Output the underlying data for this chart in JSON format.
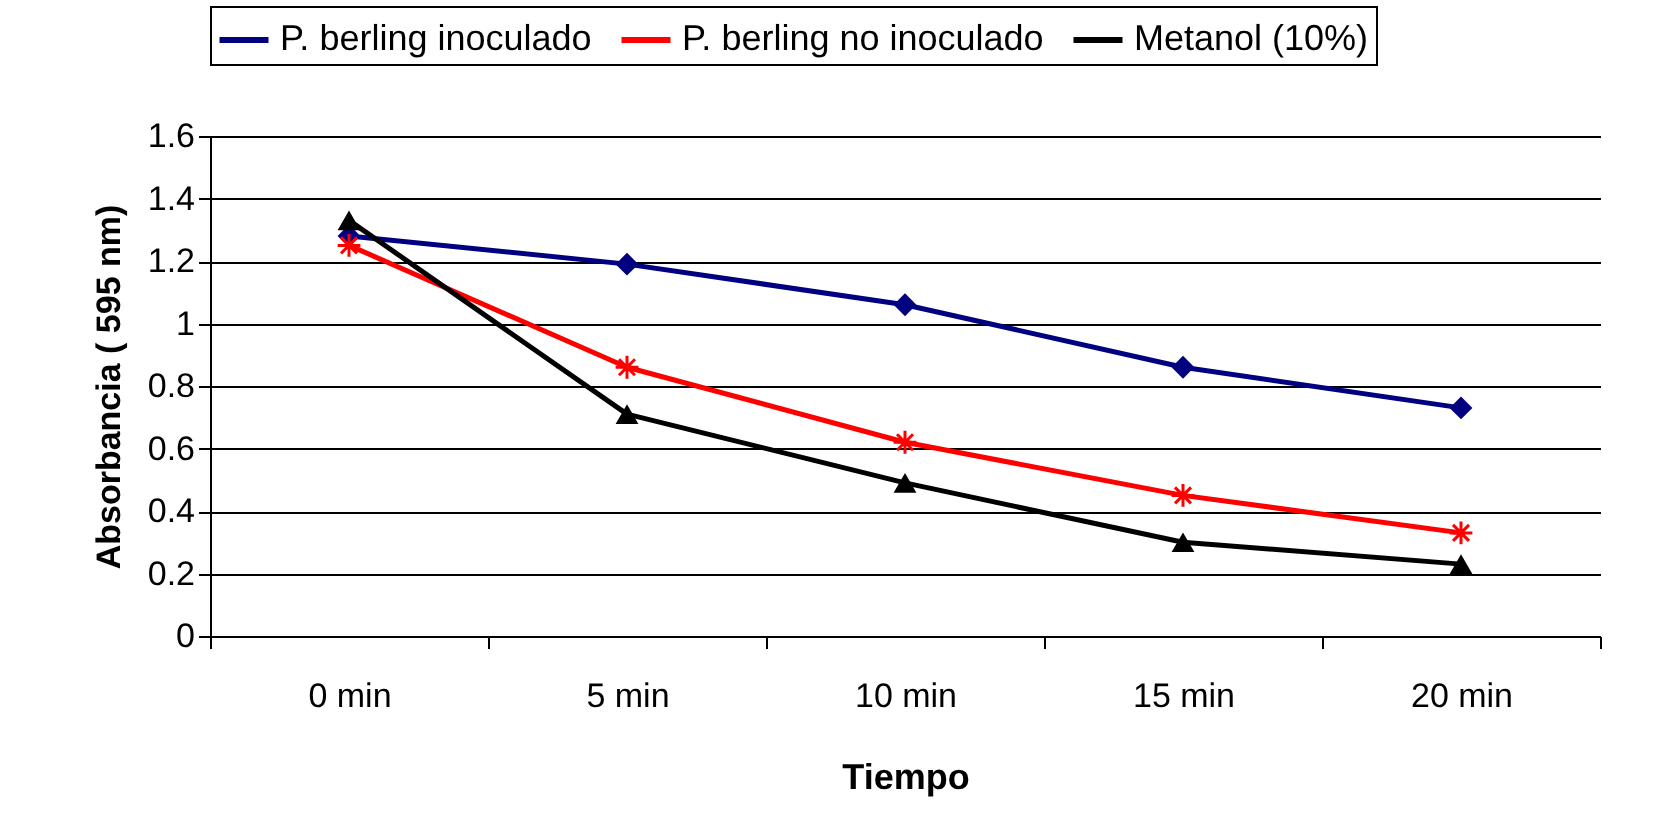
{
  "chart_data": {
    "type": "line",
    "xlabel": "Tiempo",
    "ylabel": "Absorbancia ( 595 nm)",
    "categories": [
      "0 min",
      "5 min",
      "10 min",
      "15 min",
      "20 min"
    ],
    "series": [
      {
        "name": "P. berling inoculado",
        "color": "#000080",
        "marker": "diamond",
        "values": [
          1.28,
          1.19,
          1.06,
          0.86,
          0.73
        ]
      },
      {
        "name": "P. berling no inoculado",
        "color": "#ff0000",
        "marker": "cross",
        "values": [
          1.25,
          0.86,
          0.62,
          0.45,
          0.33
        ]
      },
      {
        "name": "Metanol (10%)",
        "color": "#000000",
        "marker": "triangle",
        "values": [
          1.33,
          0.71,
          0.49,
          0.3,
          0.23
        ]
      }
    ],
    "ylim": [
      0,
      1.6
    ],
    "yticks": [
      0,
      0.2,
      0.4,
      0.6,
      0.8,
      1,
      1.2,
      1.4,
      1.6
    ],
    "grid": "y",
    "legend": "top"
  }
}
